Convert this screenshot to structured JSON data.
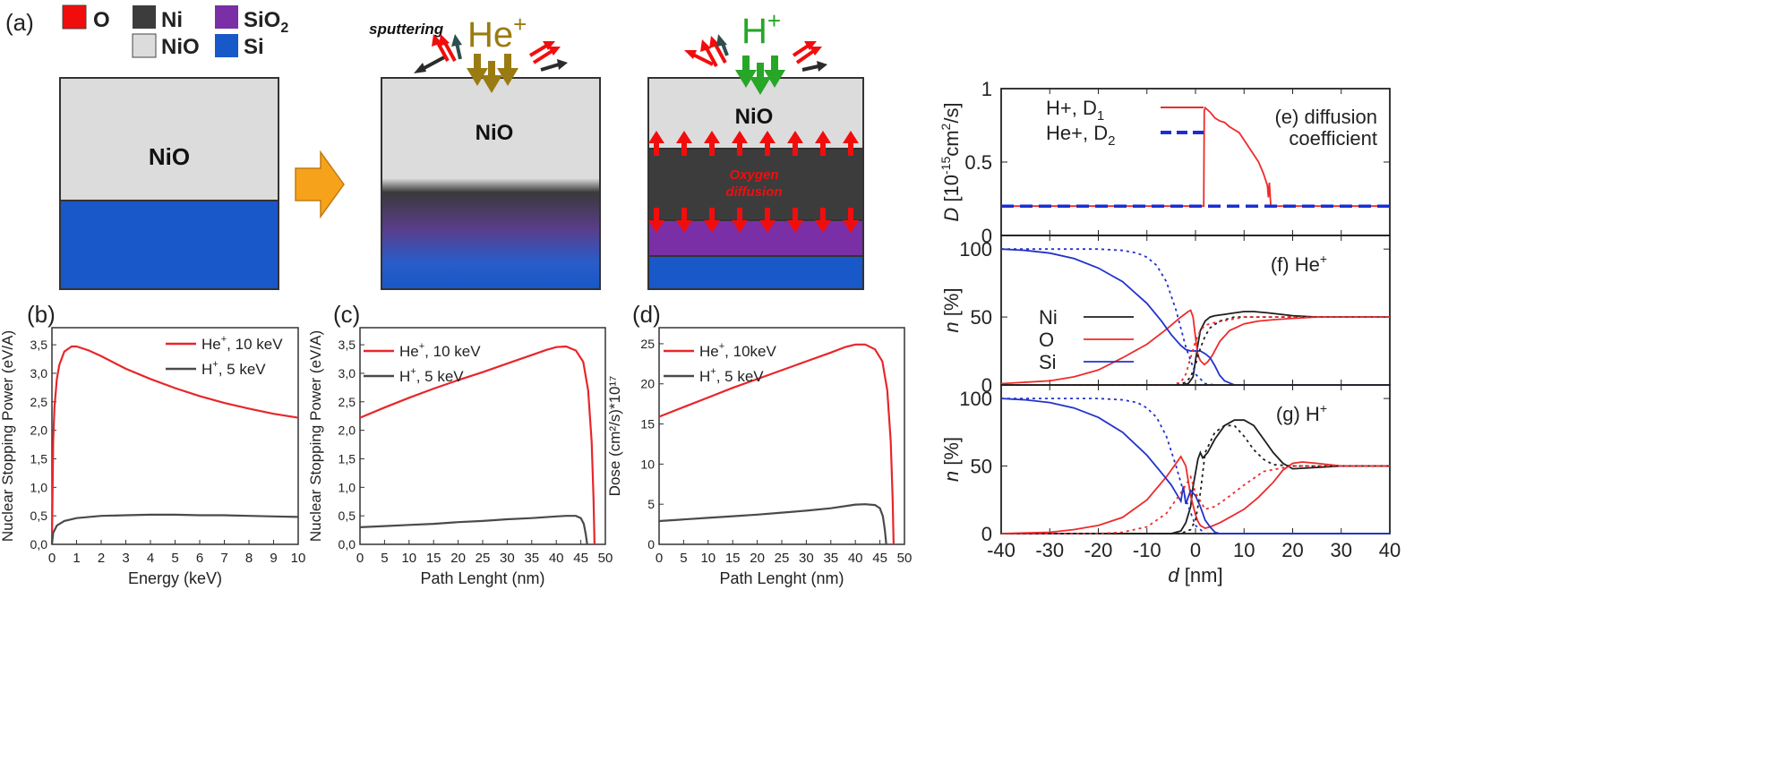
{
  "schematic": {
    "panel_label": "(a)",
    "legend": [
      {
        "label": "O",
        "color": "#f20d0d"
      },
      {
        "label": "Ni",
        "color": "#3c3c3c"
      },
      {
        "label": "SiO",
        "sub": "2",
        "color": "#7a2fa6"
      },
      {
        "label": "NiO",
        "color": "#dcdcdc"
      },
      {
        "label": "Si",
        "color": "#1858c8"
      }
    ],
    "block1_label": "NiO",
    "block2_label": "NiO",
    "block3_label": "NiO",
    "sputtering_label": "sputtering",
    "ion_he": "He",
    "ion_he_sup": "+",
    "ion_h": "H",
    "ion_h_sup": "+",
    "oxygen_line1": "Oxygen",
    "oxygen_line2": "diffusion",
    "colors": {
      "nio": "#dcdcdc",
      "si": "#1858c8",
      "ni": "#3c3c3c",
      "sio2": "#7a2fa6",
      "oxygen": "#f20d0d",
      "he_ion": "#9a7b12",
      "h_ion": "#27a627",
      "arrow_orange": "#f7a21b",
      "dark_arrow": "#2b2b2b",
      "teal_arrow": "#2f4f4f"
    }
  },
  "chart_data": [
    {
      "panel": "(b)",
      "type": "line",
      "xlabel": "Energy (keV)",
      "ylabel": "Nuclear Stopping Power (eV/A)",
      "xlim": [
        0,
        10
      ],
      "ylim": [
        0,
        3.8
      ],
      "x_ticks": [
        "0",
        "1",
        "2",
        "3",
        "4",
        "5",
        "6",
        "7",
        "8",
        "9",
        "10"
      ],
      "y_ticks": [
        "0,0",
        "0,5",
        "1,0",
        "1,5",
        "2,0",
        "2,5",
        "3,0",
        "3,5"
      ],
      "series": [
        {
          "name": "He",
          "sup": "+",
          "suffix": ", 10 keV",
          "color": "#e8262b",
          "x": [
            0,
            0.05,
            0.1,
            0.2,
            0.3,
            0.5,
            0.8,
            1.0,
            1.5,
            2,
            3,
            4,
            5,
            6,
            7,
            8,
            9,
            10
          ],
          "y": [
            0,
            1.8,
            2.4,
            2.9,
            3.15,
            3.38,
            3.47,
            3.47,
            3.4,
            3.3,
            3.08,
            2.9,
            2.74,
            2.6,
            2.48,
            2.38,
            2.29,
            2.22
          ]
        },
        {
          "name": "H",
          "sup": "+",
          "suffix": ", 5 keV",
          "color": "#4a4a4a",
          "x": [
            0,
            0.05,
            0.2,
            0.5,
            1,
            2,
            3,
            4,
            5,
            6,
            7,
            8,
            9,
            10
          ],
          "y": [
            0,
            0.2,
            0.33,
            0.41,
            0.46,
            0.5,
            0.51,
            0.52,
            0.52,
            0.51,
            0.51,
            0.5,
            0.49,
            0.48
          ]
        }
      ]
    },
    {
      "panel": "(c)",
      "type": "line",
      "xlabel": "Path Lenght (nm)",
      "ylabel": "Nuclear Stopping Power (eV/A)",
      "xlim": [
        0,
        50
      ],
      "ylim": [
        0,
        3.8
      ],
      "x_ticks": [
        "0",
        "5",
        "10",
        "15",
        "20",
        "25",
        "30",
        "35",
        "40",
        "45",
        "50"
      ],
      "y_ticks": [
        "0,0",
        "0,5",
        "1,0",
        "1,5",
        "2,0",
        "2,5",
        "3,0",
        "3,5"
      ],
      "series": [
        {
          "name": "He",
          "sup": "+",
          "suffix": ", 10 keV",
          "color": "#e8262b",
          "x": [
            0,
            5,
            10,
            15,
            20,
            25,
            30,
            35,
            38,
            40,
            42,
            44,
            45.5,
            46.5,
            47.2,
            47.6,
            47.8
          ],
          "y": [
            2.22,
            2.4,
            2.57,
            2.73,
            2.88,
            3.02,
            3.17,
            3.32,
            3.41,
            3.46,
            3.47,
            3.4,
            3.2,
            2.7,
            1.8,
            0.8,
            0
          ]
        },
        {
          "name": "H",
          "sup": "+",
          "suffix": ", 5 keV",
          "color": "#4a4a4a",
          "x": [
            0,
            5,
            10,
            15,
            20,
            25,
            30,
            35,
            40,
            42,
            44,
            45,
            45.6,
            46,
            46.3
          ],
          "y": [
            0.3,
            0.32,
            0.34,
            0.36,
            0.39,
            0.41,
            0.44,
            0.46,
            0.49,
            0.5,
            0.5,
            0.46,
            0.36,
            0.18,
            0
          ]
        }
      ]
    },
    {
      "panel": "(d)",
      "type": "line",
      "xlabel": "Path Lenght (nm)",
      "ylabel": "Dose (cm²/s)*10¹⁷",
      "xlim": [
        0,
        50
      ],
      "ylim": [
        0,
        27
      ],
      "x_ticks": [
        "0",
        "5",
        "10",
        "15",
        "20",
        "25",
        "30",
        "35",
        "40",
        "45",
        "50"
      ],
      "y_ticks": [
        "0",
        "5",
        "10",
        "15",
        "20",
        "25"
      ],
      "series": [
        {
          "name": "He",
          "sup": "+",
          "suffix": ", 10keV",
          "color": "#e8262b",
          "x": [
            0,
            5,
            10,
            15,
            20,
            25,
            30,
            35,
            38,
            40,
            42,
            44,
            45.5,
            46.5,
            47.2,
            47.6,
            47.8
          ],
          "y": [
            15.9,
            17.1,
            18.3,
            19.5,
            20.6,
            21.7,
            22.8,
            23.9,
            24.6,
            24.9,
            24.9,
            24.3,
            22.8,
            19.2,
            12.8,
            5.7,
            0
          ]
        },
        {
          "name": "H",
          "sup": "+",
          "suffix": ", 5 keV",
          "color": "#4a4a4a",
          "x": [
            0,
            5,
            10,
            15,
            20,
            25,
            30,
            35,
            40,
            42,
            44,
            45,
            45.6,
            46,
            46.3
          ],
          "y": [
            2.9,
            3.1,
            3.3,
            3.5,
            3.7,
            3.95,
            4.2,
            4.5,
            4.95,
            5.0,
            4.9,
            4.5,
            3.5,
            1.8,
            0
          ]
        }
      ]
    },
    {
      "panel": "(e)",
      "type": "line",
      "annotation": [
        "(e) diffusion",
        "coefficient"
      ],
      "ylabel_main": "D",
      "ylabel_unit": "[10",
      "ylabel_exp": "-15",
      "ylabel_rest": "cm",
      "ylabel_exp2": "2",
      "ylabel_end": "/s]",
      "xlim": [
        -40,
        40
      ],
      "ylim": [
        0,
        1
      ],
      "y_ticks": [
        "0",
        "0.5",
        "1"
      ],
      "series": [
        {
          "name": "H+, D",
          "sub": "1",
          "style": "solid",
          "color": "#ee2b2b",
          "x": [
            -40,
            1.7,
            1.8,
            2,
            3,
            4,
            5,
            6,
            7,
            8,
            9,
            10,
            11,
            12,
            13,
            14,
            14.8,
            15,
            15.2,
            15.5,
            16,
            40
          ],
          "y": [
            0.2,
            0.2,
            0.85,
            0.87,
            0.84,
            0.8,
            0.78,
            0.77,
            0.74,
            0.72,
            0.7,
            0.65,
            0.6,
            0.55,
            0.5,
            0.42,
            0.34,
            0.26,
            0.36,
            0.2,
            0.2,
            0.2
          ]
        },
        {
          "name": "He+, D",
          "sub": "2",
          "style": "dashed",
          "color": "#1a2fd1",
          "x": [
            -40,
            40
          ],
          "y": [
            0.2,
            0.2
          ]
        }
      ]
    },
    {
      "panel": "(f)",
      "type": "line",
      "annotation": "(f) He",
      "annotation_sup": "+",
      "ylabel_main": "n",
      "ylabel_unit": "[%]",
      "xlim": [
        -40,
        40
      ],
      "ylim": [
        0,
        110
      ],
      "y_ticks": [
        "0",
        "50",
        "100"
      ],
      "legend_entries": [
        {
          "label": "Ni",
          "color": "#1e1e1e"
        },
        {
          "label": "O",
          "color": "#ee2b2b"
        },
        {
          "label": "Si",
          "color": "#2233cc"
        }
      ],
      "series": [
        {
          "name": "Ni",
          "style": "solid",
          "color": "#1e1e1e",
          "x": [
            -40,
            -3,
            -1.5,
            -0.5,
            0,
            0.5,
            1,
            2,
            3,
            4,
            6,
            8,
            10,
            12,
            15,
            20,
            25,
            30,
            40
          ],
          "y": [
            0,
            0,
            1,
            6,
            18,
            30,
            40,
            47,
            50,
            51,
            52,
            53,
            54,
            54,
            53,
            51,
            50,
            50,
            50
          ]
        },
        {
          "name": "O",
          "style": "solid",
          "color": "#ee2b2b",
          "x": [
            -40,
            -30,
            -25,
            -20,
            -15,
            -10,
            -6,
            -3,
            -1.5,
            -1,
            -0.5,
            0,
            0.5,
            1,
            1.8,
            2.5,
            3.5,
            5,
            7,
            10,
            13,
            16,
            20,
            25,
            40
          ],
          "y": [
            1,
            3,
            6,
            11,
            20,
            30,
            41,
            50,
            54,
            55,
            50,
            35,
            22,
            18,
            15,
            17,
            22,
            32,
            40,
            45,
            47,
            48,
            49,
            50,
            50
          ]
        },
        {
          "name": "Si",
          "style": "solid",
          "color": "#2233cc",
          "x": [
            -40,
            -35,
            -30,
            -25,
            -20,
            -15,
            -10,
            -7,
            -5,
            -3,
            -2,
            -1,
            0,
            1,
            2,
            3,
            4,
            5,
            6,
            8,
            40
          ],
          "y": [
            100,
            99,
            97,
            93,
            86,
            76,
            60,
            47,
            37,
            29,
            26,
            25,
            25,
            25,
            23,
            20,
            14,
            7,
            3,
            0,
            0
          ]
        },
        {
          "name": "Ni dotted",
          "style": "dotted",
          "color": "#1e1e1e",
          "x": [
            -40,
            -4,
            -2,
            -1,
            0,
            1,
            2,
            3,
            5,
            8,
            12,
            20,
            40
          ],
          "y": [
            0,
            0,
            2,
            6,
            15,
            27,
            36,
            42,
            47,
            50,
            50,
            50,
            50
          ]
        },
        {
          "name": "O dotted",
          "style": "dotted",
          "color": "#ee2b2b",
          "x": [
            -40,
            -10,
            -5,
            -3,
            -2,
            -1,
            0,
            1,
            2,
            4,
            7,
            10,
            15,
            20,
            40
          ],
          "y": [
            0,
            0,
            0,
            2,
            8,
            20,
            32,
            40,
            44,
            46,
            48,
            50,
            50,
            50,
            50
          ]
        },
        {
          "name": "Si dotted",
          "style": "dotted",
          "color": "#2233cc",
          "x": [
            -40,
            -20,
            -15,
            -12,
            -10,
            -8,
            -6,
            -4,
            -2,
            0,
            2,
            4,
            40
          ],
          "y": [
            100,
            100,
            99,
            97,
            94,
            88,
            76,
            55,
            28,
            8,
            1,
            0,
            0
          ]
        }
      ]
    },
    {
      "panel": "(g)",
      "type": "line",
      "annotation": "(g) H",
      "annotation_sup": "+",
      "ylabel_main": "n",
      "ylabel_unit": "[%]",
      "xlim": [
        -40,
        40
      ],
      "ylim": [
        0,
        110
      ],
      "y_ticks": [
        "0",
        "50",
        "100"
      ],
      "x_ticks": [
        "-40",
        "-30",
        "-20",
        "-10",
        "0",
        "10",
        "20",
        "30",
        "40"
      ],
      "xlabel_main": "d",
      "xlabel_unit": "[nm]",
      "series": [
        {
          "name": "Ni",
          "style": "solid",
          "color": "#1e1e1e",
          "x": [
            -40,
            -5,
            -3,
            -2,
            -1,
            -0.5,
            0,
            0.5,
            1,
            1.5,
            2.5,
            4,
            6,
            8,
            10,
            12,
            14,
            16,
            18,
            20,
            25,
            30,
            40
          ],
          "y": [
            0,
            0,
            2,
            8,
            20,
            35,
            45,
            55,
            60,
            56,
            60,
            70,
            80,
            84,
            84,
            80,
            70,
            60,
            52,
            48,
            49,
            50,
            50
          ]
        },
        {
          "name": "O",
          "style": "solid",
          "color": "#ee2b2b",
          "x": [
            -40,
            -30,
            -25,
            -20,
            -15,
            -10,
            -6,
            -4,
            -3,
            -2,
            -1,
            0,
            0.5,
            1,
            2,
            3,
            5,
            7,
            10,
            13,
            16,
            18,
            20,
            22,
            25,
            30,
            40
          ],
          "y": [
            0,
            1,
            3,
            6,
            12,
            25,
            42,
            52,
            57,
            50,
            28,
            14,
            9,
            6,
            4,
            5,
            8,
            12,
            18,
            27,
            38,
            47,
            52,
            53,
            52,
            50,
            50
          ]
        },
        {
          "name": "Si",
          "style": "solid",
          "color": "#2233cc",
          "x": [
            -40,
            -35,
            -30,
            -25,
            -20,
            -15,
            -10,
            -7,
            -5,
            -4,
            -3,
            -2.5,
            -2,
            -1,
            0,
            1,
            2,
            3,
            4,
            5,
            40
          ],
          "y": [
            100,
            99,
            97,
            93,
            86,
            75,
            58,
            45,
            36,
            30,
            24,
            35,
            22,
            32,
            28,
            20,
            10,
            5,
            1,
            0,
            0
          ]
        },
        {
          "name": "Ni dotted",
          "style": "dotted",
          "color": "#1e1e1e",
          "x": [
            -40,
            -3,
            -1,
            0,
            1,
            2,
            4,
            6,
            8,
            10,
            12,
            14,
            16,
            20,
            40
          ],
          "y": [
            0,
            0,
            3,
            10,
            30,
            60,
            75,
            80,
            80,
            72,
            62,
            55,
            51,
            50,
            50
          ]
        },
        {
          "name": "O dotted",
          "style": "dotted",
          "color": "#ee2b2b",
          "x": [
            -40,
            -20,
            -15,
            -10,
            -6,
            -3,
            -1,
            0,
            2,
            4,
            6,
            10,
            14,
            20,
            40
          ],
          "y": [
            0,
            0,
            1,
            5,
            15,
            30,
            42,
            30,
            18,
            20,
            25,
            36,
            46,
            50,
            50
          ]
        },
        {
          "name": "Si dotted",
          "style": "dotted",
          "color": "#2233cc",
          "x": [
            -40,
            -20,
            -15,
            -12,
            -10,
            -8,
            -6,
            -4,
            -2,
            0,
            2,
            40
          ],
          "y": [
            100,
            100,
            99,
            97,
            93,
            86,
            72,
            50,
            25,
            6,
            0,
            0
          ]
        }
      ]
    }
  ]
}
